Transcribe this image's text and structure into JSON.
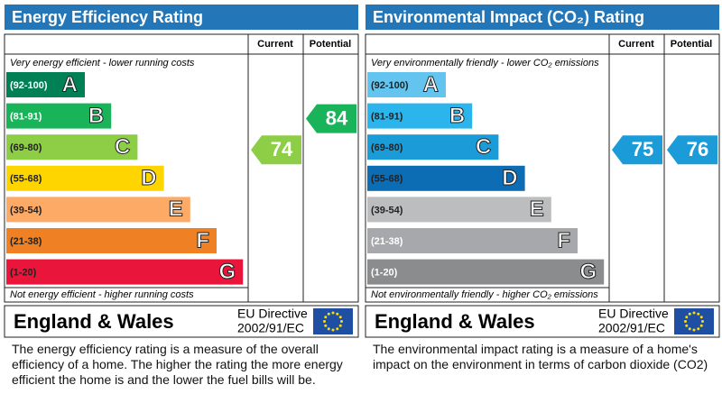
{
  "panels": [
    {
      "title": "Energy Efficiency Rating",
      "headers": [
        "Current",
        "Potential"
      ],
      "top_note": "Very energy efficient - lower running costs",
      "bottom_note": "Not energy efficient - higher running costs",
      "bands": [
        {
          "range": "(92-100)",
          "letter": "A",
          "color": "#008054",
          "text_color": "#ffffff"
        },
        {
          "range": "(81-91)",
          "letter": "B",
          "color": "#19b459",
          "text_color": "#ffffff"
        },
        {
          "range": "(69-80)",
          "letter": "C",
          "color": "#8dce46",
          "text_color": "#222222"
        },
        {
          "range": "(55-68)",
          "letter": "D",
          "color": "#ffd500",
          "text_color": "#222222"
        },
        {
          "range": "(39-54)",
          "letter": "E",
          "color": "#fcaa65",
          "text_color": "#222222"
        },
        {
          "range": "(21-38)",
          "letter": "F",
          "color": "#ef8023",
          "text_color": "#222222"
        },
        {
          "range": "(1-20)",
          "letter": "G",
          "color": "#e9153b",
          "text_color": "#222222"
        }
      ],
      "current": 74,
      "potential": 84,
      "region": "England & Wales",
      "directive": [
        "EU Directive",
        "2002/91/EC"
      ],
      "description": "The energy efficiency rating is a measure of the overall efficiency of a home.  The higher the rating the more energy efficient the home is and the lower the fuel bills will be."
    },
    {
      "title": "Environmental Impact (CO₂) Rating",
      "headers": [
        "Current",
        "Potential"
      ],
      "top_note": "Very environmentally friendly - lower CO₂ emissions",
      "bottom_note": "Not environmentally friendly - higher CO₂ emissions",
      "bands": [
        {
          "range": "(92-100)",
          "letter": "A",
          "color": "#63c5ef",
          "text_color": "#222222"
        },
        {
          "range": "(81-91)",
          "letter": "B",
          "color": "#2bb5ec",
          "text_color": "#222222"
        },
        {
          "range": "(69-80)",
          "letter": "C",
          "color": "#1b9cd8",
          "text_color": "#222222"
        },
        {
          "range": "(55-68)",
          "letter": "D",
          "color": "#0c6cb4",
          "text_color": "#222222"
        },
        {
          "range": "(39-54)",
          "letter": "E",
          "color": "#bbbdbf",
          "text_color": "#222222"
        },
        {
          "range": "(21-38)",
          "letter": "F",
          "color": "#a6a8ab",
          "text_color": "#ffffff"
        },
        {
          "range": "(1-20)",
          "letter": "G",
          "color": "#8a8c8e",
          "text_color": "#ffffff"
        }
      ],
      "current": 75,
      "potential": 76,
      "region": "England & Wales",
      "directive": [
        "EU Directive",
        "2002/91/EC"
      ],
      "description": "The environmental impact rating is a measure of a home's impact on the environment in terms of carbon dioxide (CO2)"
    }
  ]
}
